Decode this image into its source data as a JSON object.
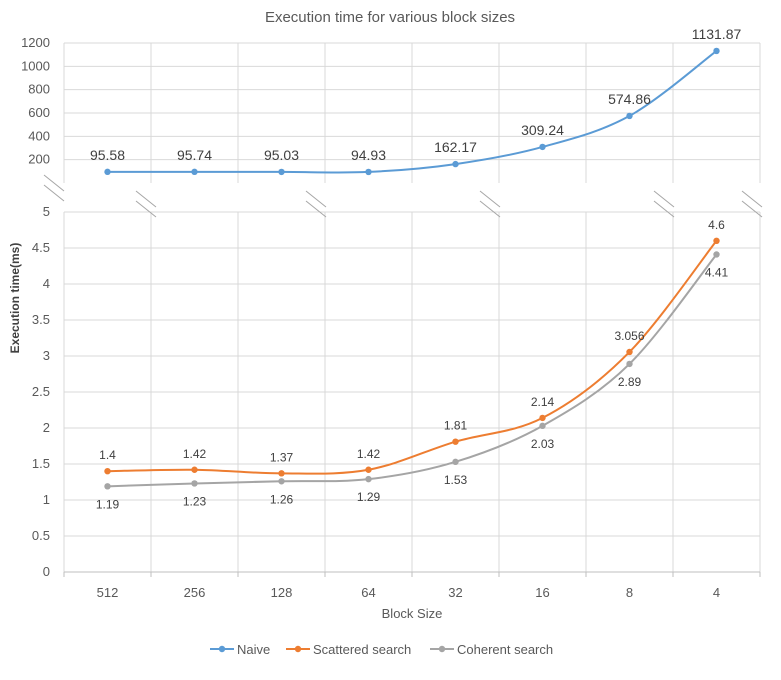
{
  "chart_data": {
    "type": "line",
    "title": "Execution time for various block sizes",
    "xlabel": "Block Size",
    "ylabel": "Execution time(ms)",
    "categories": [
      "512",
      "256",
      "128",
      "64",
      "32",
      "16",
      "8",
      "4"
    ],
    "axis_break": true,
    "upper_panel": {
      "ylim": [
        0,
        1200
      ],
      "yticks": [
        "1200",
        "1000",
        "800",
        "600",
        "400",
        "200"
      ],
      "series": [
        {
          "name": "Naive",
          "color": "#5b9bd5",
          "values": [
            95.58,
            95.74,
            95.03,
            94.93,
            162.17,
            309.24,
            574.86,
            1131.87
          ],
          "labels": [
            "95.58",
            "95.74",
            "95.03",
            "94.93",
            "162.17",
            "309.24",
            "574.86",
            "1131.87"
          ]
        }
      ]
    },
    "lower_panel": {
      "ylim": [
        0,
        5
      ],
      "yticks": [
        "5",
        "4.5",
        "4",
        "3.5",
        "3",
        "2.5",
        "2",
        "1.5",
        "1",
        "0.5",
        "0"
      ],
      "series": [
        {
          "name": "Scattered search",
          "color": "#ed7d31",
          "values": [
            1.4,
            1.42,
            1.37,
            1.42,
            1.81,
            2.14,
            3.056,
            4.6
          ],
          "labels": [
            "1.4",
            "1.42",
            "1.37",
            "1.42",
            "1.81",
            "2.14",
            "3.056",
            "4.6"
          ]
        },
        {
          "name": "Coherent search",
          "color": "#a5a5a5",
          "values": [
            1.19,
            1.23,
            1.26,
            1.29,
            1.53,
            2.03,
            2.89,
            4.41
          ],
          "labels": [
            "1.19",
            "1.23",
            "1.26",
            "1.29",
            "1.53",
            "2.03",
            "2.89",
            "4.41"
          ]
        }
      ]
    },
    "legend": [
      "Naive",
      "Scattered search",
      "Coherent search"
    ],
    "legend_position": "bottom",
    "grid": true
  }
}
